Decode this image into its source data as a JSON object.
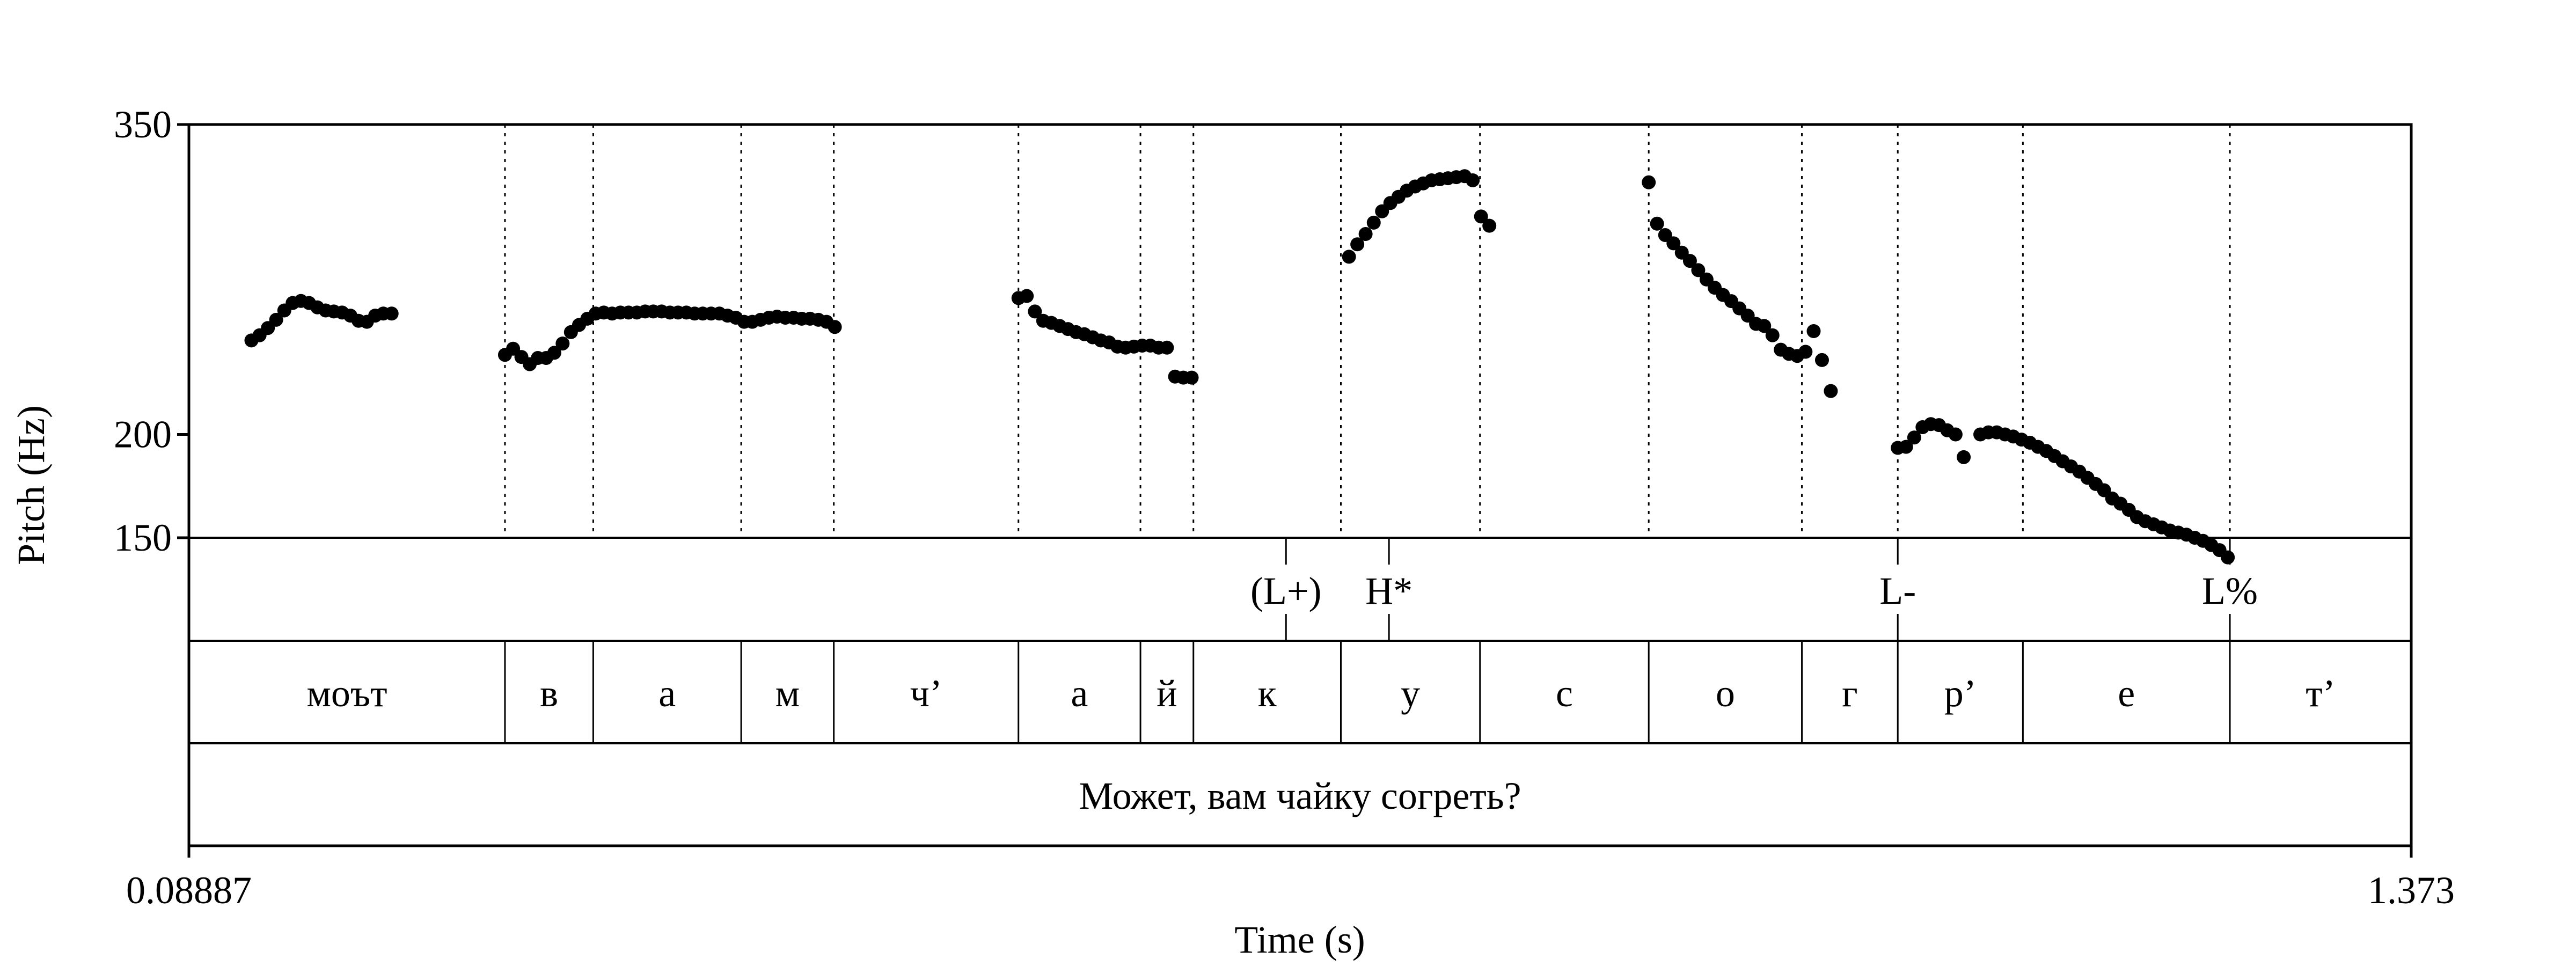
{
  "chart_data": {
    "type": "scatter",
    "xlabel": "Time (s)",
    "ylabel": "Pitch (Hz)",
    "xlim": [
      0.08887,
      1.373
    ],
    "ylim": [
      150,
      350
    ],
    "x_tick_labels": [
      "0.08887",
      "1.373"
    ],
    "y_ticks": [
      {
        "value": 150,
        "label": "150"
      },
      {
        "value": 200,
        "label": "200"
      },
      {
        "value": 350,
        "label": "350"
      }
    ],
    "segments": [
      {
        "label": "моът",
        "start": 0.08887,
        "end": 0.2715
      },
      {
        "label": "в",
        "start": 0.2715,
        "end": 0.3225
      },
      {
        "label": "а",
        "start": 0.3225,
        "end": 0.408
      },
      {
        "label": "м",
        "start": 0.408,
        "end": 0.4615
      },
      {
        "label": "ч’",
        "start": 0.4615,
        "end": 0.5682
      },
      {
        "label": "а",
        "start": 0.5682,
        "end": 0.6387
      },
      {
        "label": "й",
        "start": 0.6387,
        "end": 0.6693
      },
      {
        "label": "к",
        "start": 0.6693,
        "end": 0.7545
      },
      {
        "label": "у",
        "start": 0.7545,
        "end": 0.8349
      },
      {
        "label": "с",
        "start": 0.8349,
        "end": 0.9324
      },
      {
        "label": "о",
        "start": 0.9324,
        "end": 1.0209
      },
      {
        "label": "г",
        "start": 1.0209,
        "end": 1.0763
      },
      {
        "label": "р’",
        "start": 1.0763,
        "end": 1.1486
      },
      {
        "label": "е",
        "start": 1.1486,
        "end": 1.2682
      },
      {
        "label": "т’",
        "start": 1.2682,
        "end": 1.373
      }
    ],
    "tones": [
      {
        "label": "(L+)",
        "time": 0.7228
      },
      {
        "label": "H*",
        "time": 0.7823
      },
      {
        "label": "L-",
        "time": 1.0763
      },
      {
        "label": "L%",
        "time": 1.2682
      }
    ],
    "sentence": "Может, вам чайку согреть?",
    "pitch_series": [
      {
        "x": [
          0.125,
          0.1297,
          0.1345,
          0.1393,
          0.144,
          0.1488,
          0.1536,
          0.1583,
          0.1631,
          0.1679,
          0.1726,
          0.1774,
          0.1822,
          0.1869,
          0.1917,
          0.1965,
          0.2012,
          0.206
        ],
        "y": [
          245.5,
          248.0,
          251.5,
          255.5,
          260.0,
          263.6,
          264.6,
          263.6,
          261.5,
          260.0,
          259.5,
          259.0,
          257.5,
          255.0,
          254.5,
          257.5,
          258.5,
          258.5
        ]
      },
      {
        "x": [
          0.2715,
          0.2762,
          0.281,
          0.2858,
          0.2905,
          0.2953,
          0.3,
          0.3048,
          0.3096,
          0.3143,
          0.3191,
          0.3239,
          0.3286,
          0.3334,
          0.3382,
          0.3429,
          0.3477,
          0.3525,
          0.3572,
          0.362,
          0.3668,
          0.3715,
          0.3763,
          0.3811,
          0.3858,
          0.3906,
          0.3954,
          0.4001,
          0.4049,
          0.4097,
          0.4144,
          0.4192,
          0.424,
          0.4287,
          0.4335,
          0.4383,
          0.443,
          0.4478,
          0.4526,
          0.4573,
          0.4621
        ],
        "y": [
          238.5,
          241.5,
          237.5,
          234.0,
          237.0,
          237.0,
          239.5,
          244.0,
          249.5,
          253.0,
          256.0,
          258.5,
          259.0,
          258.5,
          259.0,
          259.0,
          259.0,
          259.5,
          259.5,
          259.5,
          259.0,
          259.0,
          259.0,
          258.5,
          258.5,
          258.5,
          258.5,
          257.5,
          256.5,
          254.5,
          254.5,
          255.5,
          256.5,
          257.0,
          256.5,
          256.5,
          256.0,
          256.0,
          255.5,
          254.5,
          252.0
        ]
      },
      {
        "x": [
          0.5682,
          0.573,
          0.5777,
          0.5825,
          0.5872,
          0.592,
          0.5968,
          0.6015,
          0.6063,
          0.6111,
          0.6158,
          0.6206,
          0.6254,
          0.6301,
          0.6349,
          0.6397,
          0.6444,
          0.6492,
          0.654,
          0.6587,
          0.6635,
          0.6683
        ],
        "y": [
          266.0,
          267.0,
          259.5,
          255.0,
          254.0,
          252.5,
          251.0,
          249.5,
          248.5,
          247.0,
          245.5,
          244.5,
          242.5,
          242.0,
          242.5,
          243.0,
          243.0,
          242.0,
          242.0,
          228.0,
          227.5,
          227.5
        ]
      },
      {
        "x": [
          0.7592,
          0.764,
          0.7688,
          0.7735,
          0.7783,
          0.7831,
          0.7878,
          0.7926,
          0.7974,
          0.8021,
          0.8069,
          0.8117,
          0.8164,
          0.8212,
          0.826,
          0.8307,
          0.8355,
          0.8403
        ],
        "y": [
          286.0,
          292.0,
          297.0,
          302.5,
          308.0,
          312.0,
          315.0,
          318.0,
          320.0,
          321.5,
          323.0,
          323.5,
          324.0,
          324.5,
          325.0,
          323.0,
          305.5,
          301.0
        ]
      },
      {
        "x": [
          0.9324,
          0.9372,
          0.9419,
          0.9467,
          0.9515,
          0.9562,
          0.961,
          0.9658,
          0.9705,
          0.9753,
          0.9801,
          0.9848,
          0.9896,
          0.9944,
          0.9991,
          1.0039,
          1.0087,
          1.0134,
          1.0182,
          1.023,
          1.0277,
          1.0325
        ],
        "y": [
          322.0,
          302.0,
          296.5,
          292.5,
          288.0,
          284.0,
          279.5,
          275.0,
          271.0,
          267.5,
          264.5,
          261.0,
          257.5,
          253.5,
          252.5,
          248.0,
          241.0,
          239.0,
          238.0,
          240.0,
          250.0,
          236.0
        ]
      },
      {
        "x": [
          1.0376,
          1.0763,
          1.0811,
          1.0858,
          1.0906,
          1.0954,
          1.1001,
          1.1049,
          1.1097,
          1.1144,
          1.124,
          1.1287,
          1.1335,
          1.1383,
          1.143,
          1.1478,
          1.1526,
          1.1573,
          1.1621,
          1.1669,
          1.1716,
          1.1764,
          1.1812,
          1.1859,
          1.1907,
          1.1955,
          1.2002,
          1.205,
          1.2098,
          1.2145,
          1.2193,
          1.2241,
          1.2288,
          1.2336,
          1.2384,
          1.2431,
          1.2479,
          1.2527,
          1.2574,
          1.2622,
          1.267
        ],
        "y": [
          221.0,
          193.5,
          194.0,
          198.5,
          203.5,
          205.0,
          204.5,
          202.0,
          200.0,
          189.0,
          200.0,
          201.0,
          201.0,
          200.0,
          199.0,
          197.5,
          196.0,
          194.0,
          192.0,
          189.5,
          187.0,
          184.5,
          182.0,
          179.0,
          176.0,
          173.0,
          169.0,
          166.5,
          163.5,
          160.0,
          158.0,
          156.5,
          155.0,
          153.5,
          152.5,
          151.5,
          150.0,
          148.5,
          146.5,
          144.0,
          140.5
        ]
      }
    ]
  }
}
